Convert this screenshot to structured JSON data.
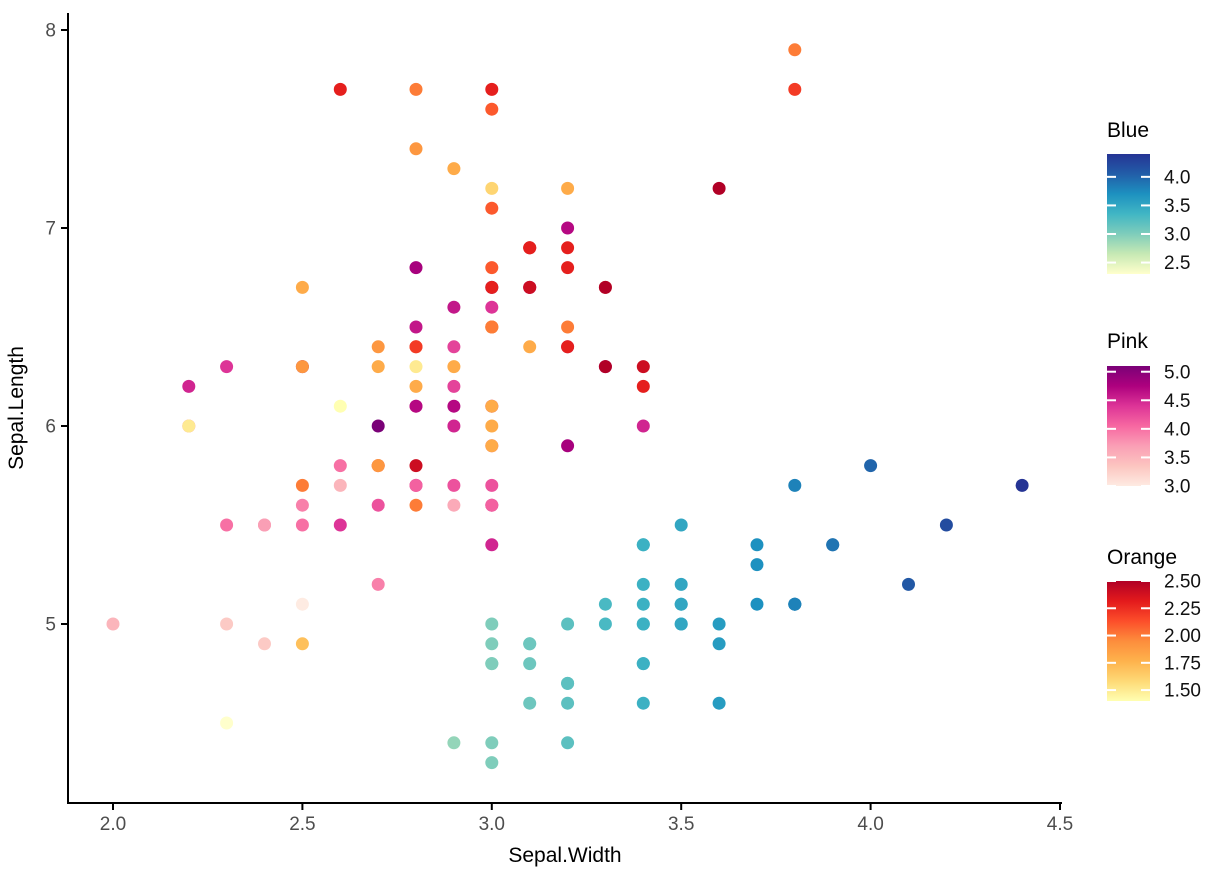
{
  "chart_data": {
    "type": "scatter",
    "title": "",
    "xlabel": "Sepal.Width",
    "ylabel": "Sepal.Length",
    "x_ticks": [
      2.0,
      2.5,
      3.0,
      3.5,
      4.0,
      4.5
    ],
    "x_tick_labels": [
      "2.0",
      "2.5",
      "3.0",
      "3.5",
      "4.0",
      "4.5"
    ],
    "y_ticks": [
      5,
      6,
      7,
      8
    ],
    "y_tick_labels": [
      "5",
      "6",
      "7",
      "8"
    ],
    "x_range": [
      1.88,
      4.52
    ],
    "y_range": [
      4.09,
      8.08
    ],
    "grid": "off",
    "background": "#ffffff",
    "axis_color": "#000000",
    "tick_label_color": "#4d4d4d",
    "title_color": "#000000",
    "point_radius_px": 6.5,
    "series": [
      {
        "name": "Blue",
        "color_variable": "Sepal.Width",
        "limits": [
          2.3,
          4.4
        ],
        "palette": [
          "#ffffcc",
          "#c7e9b4",
          "#7fcdbb",
          "#41b6c4",
          "#1d91c0",
          "#225ea8",
          "#253494"
        ],
        "points": [
          [
            3.5,
            5.1,
            3.5
          ],
          [
            3.0,
            4.9,
            3.0
          ],
          [
            3.2,
            4.7,
            3.2
          ],
          [
            3.1,
            4.6,
            3.1
          ],
          [
            3.6,
            5.0,
            3.6
          ],
          [
            3.9,
            5.4,
            3.9
          ],
          [
            3.4,
            4.6,
            3.4
          ],
          [
            3.4,
            5.0,
            3.4
          ],
          [
            2.9,
            4.4,
            2.9
          ],
          [
            3.1,
            4.9,
            3.1
          ],
          [
            3.7,
            5.4,
            3.7
          ],
          [
            3.4,
            4.8,
            3.4
          ],
          [
            3.0,
            4.8,
            3.0
          ],
          [
            3.0,
            4.3,
            3.0
          ],
          [
            4.0,
            5.8,
            4.0
          ],
          [
            4.4,
            5.7,
            4.4
          ],
          [
            3.9,
            5.4,
            3.9
          ],
          [
            3.5,
            5.1,
            3.5
          ],
          [
            3.8,
            5.7,
            3.8
          ],
          [
            3.8,
            5.1,
            3.8
          ],
          [
            3.4,
            5.4,
            3.4
          ],
          [
            3.7,
            5.1,
            3.7
          ],
          [
            3.6,
            4.6,
            3.6
          ],
          [
            3.3,
            5.1,
            3.3
          ],
          [
            3.4,
            4.8,
            3.4
          ],
          [
            3.0,
            5.0,
            3.0
          ],
          [
            3.4,
            5.0,
            3.4
          ],
          [
            3.5,
            5.2,
            3.5
          ],
          [
            3.4,
            5.2,
            3.4
          ],
          [
            3.2,
            4.7,
            3.2
          ],
          [
            3.1,
            4.8,
            3.1
          ],
          [
            3.4,
            5.4,
            3.4
          ],
          [
            4.1,
            5.2,
            4.1
          ],
          [
            4.2,
            5.5,
            4.2
          ],
          [
            3.1,
            4.9,
            3.1
          ],
          [
            3.2,
            5.0,
            3.2
          ],
          [
            3.5,
            5.5,
            3.5
          ],
          [
            3.6,
            4.9,
            3.6
          ],
          [
            3.0,
            4.4,
            3.0
          ],
          [
            3.4,
            5.1,
            3.4
          ],
          [
            3.5,
            5.0,
            3.5
          ],
          [
            2.3,
            4.5,
            2.3
          ],
          [
            3.2,
            4.4,
            3.2
          ],
          [
            3.5,
            5.0,
            3.5
          ],
          [
            3.8,
            5.1,
            3.8
          ],
          [
            3.0,
            4.8,
            3.0
          ],
          [
            3.8,
            5.1,
            3.8
          ],
          [
            3.2,
            4.6,
            3.2
          ],
          [
            3.7,
            5.3,
            3.7
          ],
          [
            3.3,
            5.0,
            3.3
          ]
        ]
      },
      {
        "name": "Pink",
        "color_variable": "Petal.Length",
        "limits": [
          3.0,
          5.1
        ],
        "palette": [
          "#feebe2",
          "#fcc5c0",
          "#fa9fb5",
          "#f768a1",
          "#dd3497",
          "#ae017e",
          "#7a0177"
        ],
        "points": [
          [
            3.2,
            7.0,
            4.7
          ],
          [
            3.2,
            6.4,
            4.5
          ],
          [
            3.1,
            6.9,
            4.9
          ],
          [
            2.3,
            5.5,
            4.0
          ],
          [
            2.8,
            6.5,
            4.6
          ],
          [
            2.8,
            5.7,
            4.5
          ],
          [
            3.3,
            6.3,
            4.7
          ],
          [
            2.4,
            4.9,
            3.3
          ],
          [
            2.9,
            6.6,
            4.6
          ],
          [
            2.7,
            5.2,
            3.9
          ],
          [
            2.0,
            5.0,
            3.5
          ],
          [
            3.0,
            5.9,
            4.2
          ],
          [
            2.2,
            6.0,
            4.0
          ],
          [
            2.9,
            6.1,
            4.7
          ],
          [
            2.9,
            5.6,
            3.6
          ],
          [
            3.1,
            6.7,
            4.4
          ],
          [
            3.0,
            5.6,
            4.5
          ],
          [
            2.7,
            5.8,
            4.1
          ],
          [
            2.2,
            6.2,
            4.5
          ],
          [
            2.5,
            5.6,
            3.9
          ],
          [
            3.2,
            5.9,
            4.8
          ],
          [
            2.8,
            6.1,
            4.0
          ],
          [
            2.5,
            6.3,
            4.9
          ],
          [
            2.8,
            6.1,
            4.7
          ],
          [
            2.9,
            6.4,
            4.3
          ],
          [
            3.0,
            6.6,
            4.4
          ],
          [
            2.8,
            6.8,
            4.8
          ],
          [
            3.0,
            6.7,
            5.0
          ],
          [
            2.9,
            6.0,
            4.5
          ],
          [
            2.6,
            5.7,
            3.5
          ],
          [
            2.4,
            5.5,
            3.8
          ],
          [
            2.4,
            5.5,
            3.7
          ],
          [
            2.7,
            5.8,
            3.9
          ],
          [
            2.7,
            6.0,
            5.1
          ],
          [
            3.0,
            5.4,
            4.5
          ],
          [
            3.4,
            6.0,
            4.5
          ],
          [
            3.1,
            6.7,
            4.7
          ],
          [
            2.3,
            6.3,
            4.4
          ],
          [
            3.0,
            5.6,
            4.1
          ],
          [
            2.5,
            5.5,
            4.0
          ],
          [
            2.6,
            5.5,
            4.4
          ],
          [
            3.0,
            6.1,
            4.6
          ],
          [
            2.6,
            5.8,
            4.0
          ],
          [
            2.3,
            5.0,
            3.3
          ],
          [
            2.7,
            5.6,
            4.2
          ],
          [
            3.0,
            5.7,
            4.2
          ],
          [
            2.9,
            5.7,
            4.2
          ],
          [
            2.9,
            6.2,
            4.3
          ],
          [
            2.5,
            5.1,
            3.0
          ],
          [
            2.8,
            5.7,
            4.1
          ]
        ]
      },
      {
        "name": "Orange",
        "color_variable": "Petal.Width",
        "limits": [
          1.4,
          2.5
        ],
        "palette": [
          "#ffffb2",
          "#fed976",
          "#feb24c",
          "#fd8d3c",
          "#fc4e2a",
          "#e31a1c",
          "#b10026"
        ],
        "points": [
          [
            3.3,
            6.3,
            2.5
          ],
          [
            2.7,
            5.8,
            1.9
          ],
          [
            3.0,
            7.1,
            2.1
          ],
          [
            2.9,
            6.3,
            1.8
          ],
          [
            3.0,
            6.5,
            2.2
          ],
          [
            3.0,
            7.6,
            2.1
          ],
          [
            2.5,
            4.9,
            1.7
          ],
          [
            2.9,
            7.3,
            1.8
          ],
          [
            2.5,
            6.7,
            1.8
          ],
          [
            3.6,
            7.2,
            2.5
          ],
          [
            3.2,
            6.5,
            2.0
          ],
          [
            2.7,
            6.4,
            1.9
          ],
          [
            3.0,
            6.8,
            2.1
          ],
          [
            2.5,
            5.7,
            2.0
          ],
          [
            2.8,
            5.8,
            2.4
          ],
          [
            3.2,
            6.4,
            2.3
          ],
          [
            3.0,
            6.5,
            1.8
          ],
          [
            3.8,
            7.7,
            2.2
          ],
          [
            2.6,
            7.7,
            2.3
          ],
          [
            2.2,
            6.0,
            1.5
          ],
          [
            3.2,
            6.9,
            2.3
          ],
          [
            2.8,
            5.6,
            2.0
          ],
          [
            2.8,
            7.7,
            2.0
          ],
          [
            2.7,
            6.3,
            1.8
          ],
          [
            3.3,
            6.7,
            2.1
          ],
          [
            3.2,
            7.2,
            1.8
          ],
          [
            2.8,
            6.2,
            1.8
          ],
          [
            3.0,
            6.1,
            1.8
          ],
          [
            2.8,
            6.4,
            2.1
          ],
          [
            3.0,
            7.2,
            1.6
          ],
          [
            2.8,
            7.4,
            1.9
          ],
          [
            3.8,
            7.9,
            2.0
          ],
          [
            2.8,
            6.4,
            2.2
          ],
          [
            2.8,
            6.3,
            1.5
          ],
          [
            2.6,
            6.1,
            1.4
          ],
          [
            3.0,
            7.7,
            2.3
          ],
          [
            3.4,
            6.3,
            2.4
          ],
          [
            3.1,
            6.4,
            1.8
          ],
          [
            3.0,
            6.0,
            1.8
          ],
          [
            3.1,
            6.9,
            2.1
          ],
          [
            3.1,
            6.7,
            2.4
          ],
          [
            3.1,
            6.9,
            2.3
          ],
          [
            2.7,
            5.8,
            1.9
          ],
          [
            3.2,
            6.8,
            2.3
          ],
          [
            3.3,
            6.7,
            2.5
          ],
          [
            3.0,
            6.7,
            2.3
          ],
          [
            2.5,
            6.3,
            1.9
          ],
          [
            3.0,
            6.5,
            2.0
          ],
          [
            3.4,
            6.2,
            2.3
          ],
          [
            3.0,
            5.9,
            1.8
          ]
        ]
      }
    ],
    "legends": [
      {
        "title": "Blue",
        "limits": [
          2.3,
          4.4
        ],
        "tick_values": [
          4.0,
          3.5,
          3.0,
          2.5
        ],
        "tick_labels": [
          "4.0",
          "3.5",
          "3.0",
          "2.5"
        ],
        "palette": [
          "#ffffcc",
          "#c7e9b4",
          "#7fcdbb",
          "#41b6c4",
          "#1d91c0",
          "#225ea8",
          "#253494"
        ]
      },
      {
        "title": "Pink",
        "limits": [
          3.0,
          5.1
        ],
        "tick_values": [
          5.0,
          4.5,
          4.0,
          3.5,
          3.0
        ],
        "tick_labels": [
          "5.0",
          "4.5",
          "4.0",
          "3.5",
          "3.0"
        ],
        "palette": [
          "#feebe2",
          "#fcc5c0",
          "#fa9fb5",
          "#f768a1",
          "#dd3497",
          "#ae017e",
          "#7a0177"
        ]
      },
      {
        "title": "Orange",
        "limits": [
          1.4,
          2.5
        ],
        "tick_values": [
          2.5,
          2.25,
          2.0,
          1.75,
          1.5
        ],
        "tick_labels": [
          "2.50",
          "2.25",
          "2.00",
          "1.75",
          "1.50"
        ],
        "palette": [
          "#ffffb2",
          "#fed976",
          "#feb24c",
          "#fd8d3c",
          "#fc4e2a",
          "#e31a1c",
          "#b10026"
        ]
      }
    ]
  }
}
